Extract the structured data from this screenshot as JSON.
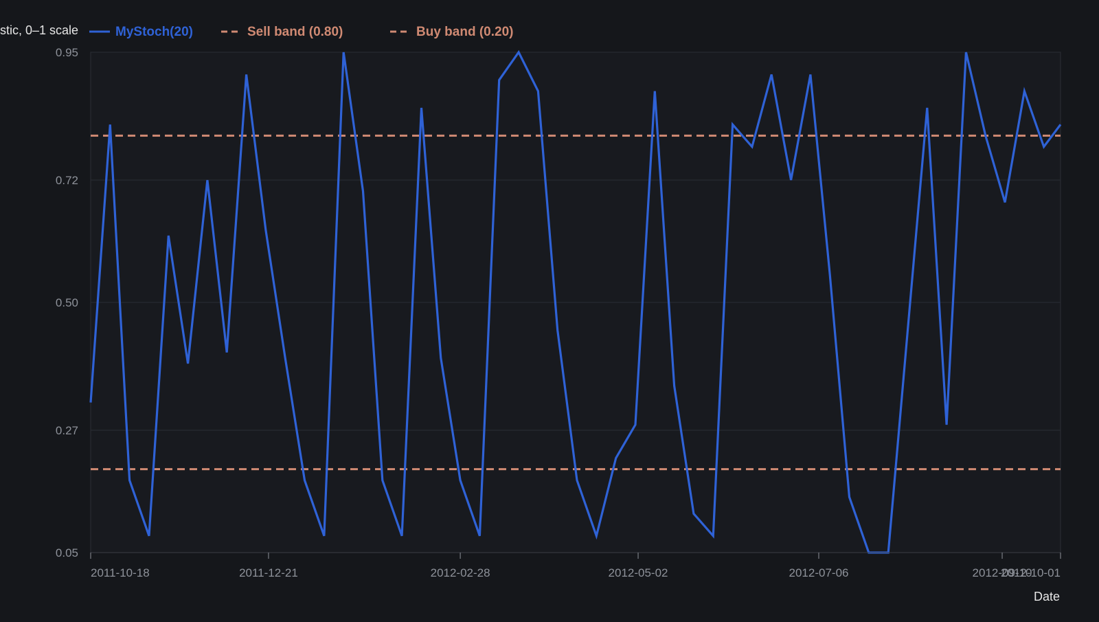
{
  "chart_data": {
    "type": "line",
    "title": "",
    "ylabel": "stic, 0–1 scale",
    "xlabel": "Date",
    "ylim": [
      0.05,
      0.95
    ],
    "yticks": [
      "0.05",
      "0.27",
      "0.50",
      "0.72",
      "0.95"
    ],
    "xlim": [
      "2011-10-18",
      "2012-10-01"
    ],
    "xticks": [
      "2011-10-18",
      "2011-12-21",
      "2012-02-28",
      "2012-05-02",
      "2012-07-06",
      "2012-09-10",
      "2012-10-01"
    ],
    "grid": true,
    "legend": {
      "placement": "top"
    },
    "series": [
      {
        "name": "MyStoch(20)",
        "color": "#2f62d6",
        "points": [
          [
            "2011-10-18",
            0.32
          ],
          [
            "2011-10-25",
            0.82
          ],
          [
            "2011-11-01",
            0.18
          ],
          [
            "2011-11-08",
            0.08
          ],
          [
            "2011-11-15",
            0.62
          ],
          [
            "2011-11-22",
            0.39
          ],
          [
            "2011-11-29",
            0.72
          ],
          [
            "2011-12-06",
            0.41
          ],
          [
            "2011-12-13",
            0.91
          ],
          [
            "2011-12-20",
            0.63
          ],
          [
            "2011-12-27",
            0.4
          ],
          [
            "2012-01-03",
            0.18
          ],
          [
            "2012-01-10",
            0.08
          ],
          [
            "2012-01-17",
            0.95
          ],
          [
            "2012-01-24",
            0.7
          ],
          [
            "2012-01-31",
            0.18
          ],
          [
            "2012-02-07",
            0.08
          ],
          [
            "2012-02-14",
            0.85
          ],
          [
            "2012-02-21",
            0.4
          ],
          [
            "2012-02-28",
            0.18
          ],
          [
            "2012-03-06",
            0.08
          ],
          [
            "2012-03-13",
            0.9
          ],
          [
            "2012-03-20",
            0.95
          ],
          [
            "2012-03-27",
            0.88
          ],
          [
            "2012-04-03",
            0.45
          ],
          [
            "2012-04-10",
            0.18
          ],
          [
            "2012-04-17",
            0.08
          ],
          [
            "2012-04-24",
            0.22
          ],
          [
            "2012-05-01",
            0.28
          ],
          [
            "2012-05-08",
            0.88
          ],
          [
            "2012-05-15",
            0.35
          ],
          [
            "2012-05-22",
            0.12
          ],
          [
            "2012-05-29",
            0.08
          ],
          [
            "2012-06-05",
            0.82
          ],
          [
            "2012-06-12",
            0.78
          ],
          [
            "2012-06-19",
            0.91
          ],
          [
            "2012-06-26",
            0.72
          ],
          [
            "2012-07-03",
            0.91
          ],
          [
            "2012-07-10",
            0.55
          ],
          [
            "2012-07-17",
            0.15
          ],
          [
            "2012-07-24",
            0.05
          ],
          [
            "2012-07-31",
            0.05
          ],
          [
            "2012-08-07",
            0.45
          ],
          [
            "2012-08-14",
            0.85
          ],
          [
            "2012-08-21",
            0.28
          ],
          [
            "2012-08-28",
            0.95
          ],
          [
            "2012-09-04",
            0.8
          ],
          [
            "2012-09-11",
            0.68
          ],
          [
            "2012-09-18",
            0.88
          ],
          [
            "2012-09-25",
            0.78
          ],
          [
            "2012-10-01",
            0.82
          ]
        ]
      },
      {
        "name": "Sell band (0.80)",
        "color": "#d08a73",
        "value": 0.8,
        "dashed": true
      },
      {
        "name": "Buy band (0.20)",
        "color": "#d08a73",
        "value": 0.2,
        "dashed": true
      }
    ]
  }
}
